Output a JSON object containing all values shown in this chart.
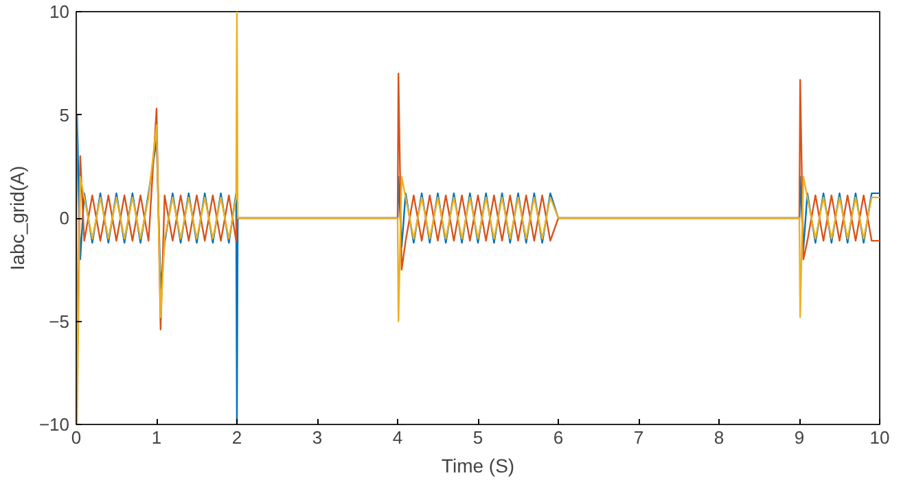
{
  "chart_data": {
    "type": "line",
    "xlabel": "Time (S)",
    "ylabel": "Iabc_grid(A)",
    "xlim": [
      0,
      10
    ],
    "ylim": [
      -10,
      10
    ],
    "xticks": [
      0,
      1,
      2,
      3,
      4,
      5,
      6,
      7,
      8,
      9,
      10
    ],
    "yticks": [
      -10,
      -5,
      0,
      5,
      10
    ],
    "grid": false,
    "line_style": "solid",
    "marker": "none",
    "x": [
      0,
      0.01,
      0.05,
      0.1,
      0.2,
      0.3,
      0.4,
      0.5,
      0.6,
      0.7,
      0.8,
      0.9,
      1.0,
      1.05,
      1.1,
      1.2,
      1.3,
      1.4,
      1.5,
      1.6,
      1.7,
      1.8,
      1.9,
      1.99,
      2.0,
      2.01,
      4.0,
      4.01,
      4.05,
      4.1,
      4.2,
      4.3,
      4.4,
      4.5,
      4.6,
      4.7,
      4.8,
      4.9,
      5.0,
      5.1,
      5.2,
      5.3,
      5.4,
      5.5,
      5.6,
      5.7,
      5.8,
      5.9,
      6.0,
      9.0,
      9.01,
      9.05,
      9.1,
      9.2,
      9.3,
      9.4,
      9.5,
      9.6,
      9.7,
      9.8,
      9.9,
      10.0
    ],
    "series": [
      {
        "color": "#0072bd",
        "values": [
          0,
          5,
          -2,
          1.2,
          -1.2,
          1.2,
          -1.2,
          1.2,
          -1.2,
          1.2,
          -1.2,
          1.2,
          3.8,
          -3.4,
          -1.2,
          1.2,
          -1.2,
          1.2,
          -1.2,
          1.2,
          -1.2,
          1.2,
          -1.2,
          1.2,
          -10,
          0,
          0,
          2,
          -1.4,
          1.2,
          -1.2,
          1.2,
          -1.2,
          1.2,
          -1.2,
          1.2,
          -1.2,
          1.2,
          -1.2,
          1.2,
          -1.2,
          1.2,
          -1.2,
          1.2,
          -1.2,
          1.2,
          -1.2,
          1.2,
          0,
          0,
          2,
          -1.5,
          1.2,
          -1.2,
          1.2,
          -1.2,
          1.2,
          -1.2,
          1.2,
          -1.2,
          1.2,
          1.2
        ]
      },
      {
        "color": "#d95319",
        "values": [
          0,
          -8,
          3,
          -1.1,
          1.1,
          -1.1,
          1.1,
          -1.1,
          1.1,
          -1.1,
          1.1,
          -1.1,
          5.3,
          -5.4,
          1.1,
          -1.1,
          1.1,
          -1.1,
          1.1,
          -1.1,
          1.1,
          -1.1,
          1.1,
          -1.1,
          0,
          0,
          0,
          7,
          -2.5,
          -1.1,
          1.1,
          -1.1,
          1.1,
          -1.1,
          1.1,
          -1.1,
          1.1,
          -1.1,
          1.1,
          -1.1,
          1.1,
          -1.1,
          1.1,
          -1.1,
          1.1,
          -1.1,
          1.1,
          -1.1,
          0,
          0,
          6.7,
          -2,
          -1.1,
          1.1,
          -1.1,
          1.1,
          -1.1,
          1.1,
          -1.1,
          1.1,
          -1.1,
          -1.1
        ]
      },
      {
        "color": "#edb120",
        "values": [
          10,
          -10,
          2,
          1.0,
          -1.0,
          1.0,
          -1.0,
          1.0,
          -1.0,
          1.0,
          -1.0,
          1.0,
          4.5,
          -4.8,
          -1.0,
          1.0,
          -1.0,
          1.0,
          -1.0,
          1.0,
          -1.0,
          1.0,
          -1.0,
          1.0,
          10,
          0,
          0,
          -5,
          2,
          1.0,
          -1.0,
          1.0,
          -1.0,
          1.0,
          -1.0,
          1.0,
          -1.0,
          1.0,
          -1.0,
          1.0,
          -1.0,
          1.0,
          -1.0,
          1.0,
          -1.0,
          1.0,
          -1.0,
          1.0,
          0,
          0,
          -4.8,
          2,
          1.0,
          -1.0,
          1.0,
          -1.0,
          1.0,
          -1.0,
          1.0,
          -1.0,
          1.0,
          1.0
        ]
      }
    ]
  }
}
